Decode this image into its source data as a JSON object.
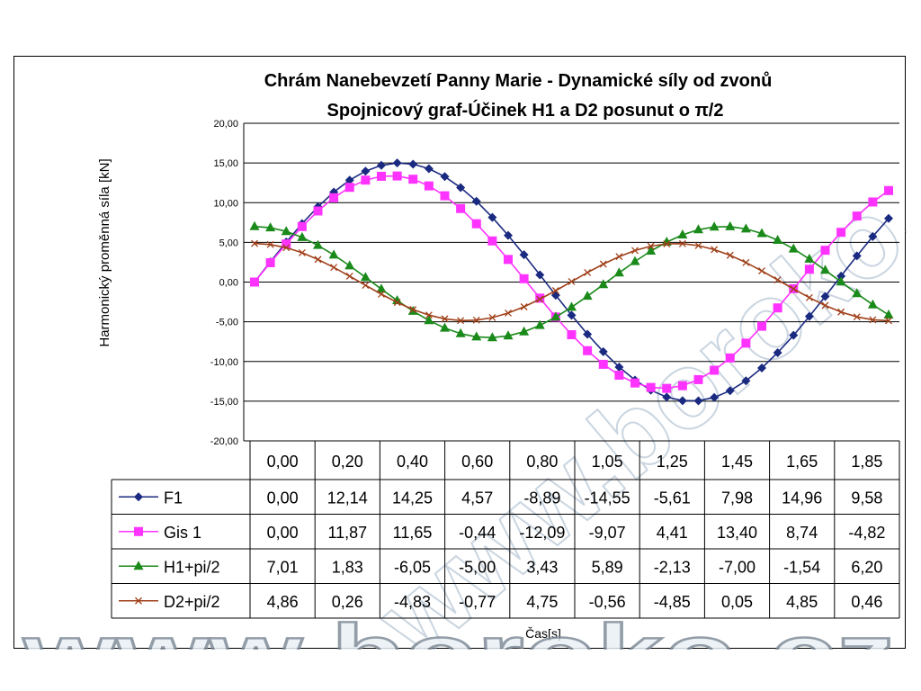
{
  "watermark": {
    "diag_text": "www.boroko.cz",
    "bottom_text": "www.boroko.cz"
  },
  "chart_data": {
    "type": "line",
    "title": "Chrám Nanebevzetí Panny Marie - Dynamické síly od zvonů",
    "subtitle": "Spojnicový graf-Účinek H1 a D2 posunut o π/2",
    "ylabel": "Harmonický proměnná síla [kN]",
    "xlabel": "Čas[s]",
    "ylim": [
      -20,
      20
    ],
    "yticks": [
      "20,00",
      "15,00",
      "10,00",
      "5,00",
      "0,00",
      "-5,00",
      "-10,00",
      "-15,00",
      "-20,00"
    ],
    "ytick_values": [
      20,
      15,
      10,
      5,
      0,
      -5,
      -10,
      -15,
      -20
    ],
    "grid": true,
    "legend_position": "data-table",
    "x": [
      "0,00",
      "0,20",
      "0,40",
      "0,60",
      "0,80",
      "1,05",
      "1,25",
      "1,45",
      "1,65",
      "1,85"
    ],
    "series": [
      {
        "name": "F1",
        "color": "#1a2a80",
        "marker": "diamond",
        "omega": 3.34,
        "phase": 0.0,
        "amp": 15.0,
        "table_values": [
          "0,00",
          "12,14",
          "14,25",
          "4,57",
          "-8,89",
          "-14,55",
          "-5,61",
          "7,98",
          "14,96",
          "9,58"
        ]
      },
      {
        "name": "Gis 1",
        "color": "#ff33ff",
        "marker": "square",
        "omega": 3.57,
        "phase": 0.0,
        "amp": 13.4,
        "table_values": [
          "0,00",
          "11,87",
          "11,65",
          "-0,44",
          "-12,09",
          "-9,07",
          "4,41",
          "13,40",
          "8,74",
          "-4,82"
        ]
      },
      {
        "name": "H1+pi/2",
        "color": "#1a8a1a",
        "marker": "triangle",
        "omega": 4.14,
        "phase": 1.5708,
        "amp": 7.0,
        "table_values": [
          "7,01",
          "1,83",
          "-6,05",
          "-5,00",
          "3,43",
          "5,89",
          "-2,13",
          "-7,00",
          "-1,54",
          "6,20"
        ]
      },
      {
        "name": "D2+pi/2",
        "color": "#a0401a",
        "marker": "x",
        "omega": 4.61,
        "phase": 1.5708,
        "amp": 4.86,
        "table_values": [
          "4,86",
          "0,26",
          "-4,83",
          "-0,77",
          "4,75",
          "-0,56",
          "-4,85",
          "0,05",
          "4,85",
          "0,46"
        ]
      }
    ]
  }
}
